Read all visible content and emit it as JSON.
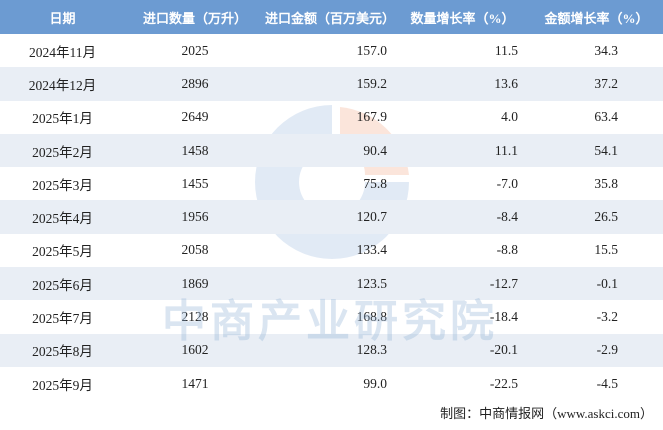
{
  "table": {
    "header": [
      "日期",
      "进口数量（万升）",
      "进口金额（百万美元）",
      "数量增长率（%）",
      "金额增长率（%）"
    ],
    "rows": [
      [
        "2024年11月",
        "2025",
        "157.0",
        "11.5",
        "34.3"
      ],
      [
        "2024年12月",
        "2896",
        "159.2",
        "13.6",
        "37.2"
      ],
      [
        "2025年1月",
        "2649",
        "167.9",
        "4.0",
        "63.4"
      ],
      [
        "2025年2月",
        "1458",
        "90.4",
        "11.1",
        "54.1"
      ],
      [
        "2025年3月",
        "1455",
        "75.8",
        "-7.0",
        "35.8"
      ],
      [
        "2025年4月",
        "1956",
        "120.7",
        "-8.4",
        "26.5"
      ],
      [
        "2025年5月",
        "2058",
        "133.4",
        "-8.8",
        "15.5"
      ],
      [
        "2025年6月",
        "1869",
        "123.5",
        "-12.7",
        "-0.1"
      ],
      [
        "2025年7月",
        "2128",
        "168.8",
        "-18.4",
        "-3.2"
      ],
      [
        "2025年8月",
        "1602",
        "128.3",
        "-20.1",
        "-2.9"
      ],
      [
        "2025年9月",
        "1471",
        "99.0",
        "-22.5",
        "-4.5"
      ]
    ]
  },
  "watermark": "中商产业研究院",
  "footer": "制图：中商情报网（www.askci.com）"
}
